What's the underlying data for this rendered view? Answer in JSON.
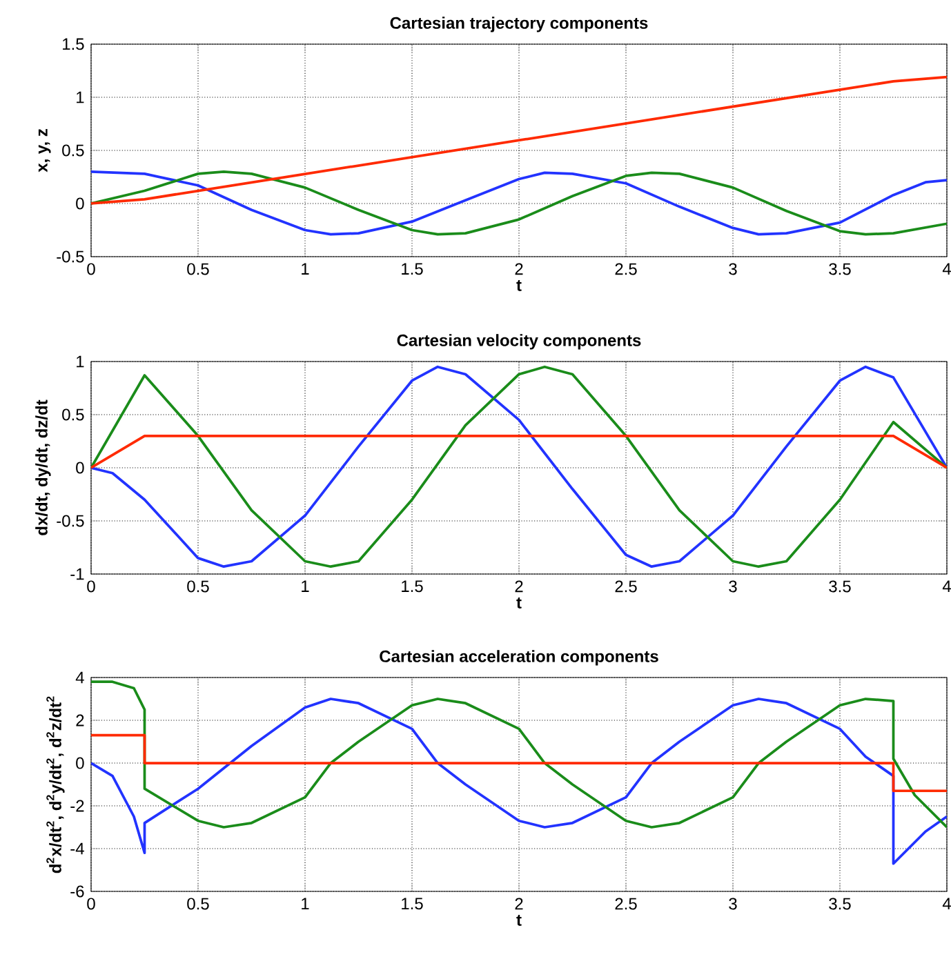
{
  "chart_data": [
    {
      "type": "line",
      "title": "Cartesian trajectory components",
      "xlabel": "t",
      "ylabel": "x, y, z",
      "xlim": [
        0,
        4
      ],
      "ylim": [
        -0.5,
        1.5
      ],
      "xticks": [
        0,
        0.5,
        1,
        1.5,
        2,
        2.5,
        3,
        3.5,
        4
      ],
      "yticks": [
        -0.5,
        0,
        0.5,
        1,
        1.5
      ],
      "grid": true,
      "line_style": "solid",
      "series": [
        {
          "color": "#2233ff",
          "x": [
            0,
            0.25,
            0.5,
            0.75,
            1.0,
            1.12,
            1.25,
            1.5,
            1.75,
            2.0,
            2.12,
            2.25,
            2.5,
            2.75,
            3.0,
            3.12,
            3.25,
            3.5,
            3.75,
            3.9,
            4
          ],
          "values": [
            0.3,
            0.28,
            0.17,
            -0.06,
            -0.25,
            -0.29,
            -0.28,
            -0.17,
            0.03,
            0.23,
            0.29,
            0.28,
            0.19,
            -0.03,
            -0.23,
            -0.29,
            -0.28,
            -0.18,
            0.08,
            0.2,
            0.22
          ]
        },
        {
          "color": "#1a8c1a",
          "x": [
            0,
            0.25,
            0.5,
            0.62,
            0.75,
            1.0,
            1.25,
            1.5,
            1.62,
            1.75,
            2.0,
            2.25,
            2.5,
            2.62,
            2.75,
            3.0,
            3.25,
            3.5,
            3.62,
            3.75,
            4
          ],
          "values": [
            0,
            0.12,
            0.28,
            0.3,
            0.28,
            0.15,
            -0.06,
            -0.25,
            -0.29,
            -0.28,
            -0.15,
            0.07,
            0.26,
            0.29,
            0.28,
            0.15,
            -0.07,
            -0.26,
            -0.29,
            -0.28,
            -0.19
          ]
        },
        {
          "color": "#ff2a00",
          "x": [
            0,
            0.25,
            3.75,
            4
          ],
          "values": [
            0,
            0.04,
            1.15,
            1.19
          ]
        }
      ]
    },
    {
      "type": "line",
      "title": "Cartesian velocity components",
      "xlabel": "t",
      "ylabel": "dx/dt, dy/dt, dz/dt",
      "xlim": [
        0,
        4
      ],
      "ylim": [
        -1,
        1
      ],
      "xticks": [
        0,
        0.5,
        1,
        1.5,
        2,
        2.5,
        3,
        3.5,
        4
      ],
      "yticks": [
        -1,
        -0.5,
        0,
        0.5,
        1
      ],
      "grid": true,
      "line_style": "solid",
      "series": [
        {
          "color": "#2233ff",
          "x": [
            0,
            0.1,
            0.25,
            0.5,
            0.62,
            0.75,
            1.0,
            1.25,
            1.5,
            1.62,
            1.75,
            2.0,
            2.25,
            2.5,
            2.62,
            2.75,
            3.0,
            3.25,
            3.5,
            3.62,
            3.75,
            4
          ],
          "values": [
            0,
            -0.05,
            -0.3,
            -0.85,
            -0.93,
            -0.88,
            -0.45,
            0.2,
            0.82,
            0.95,
            0.88,
            0.45,
            -0.2,
            -0.82,
            -0.93,
            -0.88,
            -0.45,
            0.2,
            0.82,
            0.95,
            0.85,
            0
          ]
        },
        {
          "color": "#1a8c1a",
          "x": [
            0,
            0.25,
            0.5,
            0.75,
            1.0,
            1.12,
            1.25,
            1.5,
            1.75,
            2.0,
            2.12,
            2.25,
            2.5,
            2.75,
            3.0,
            3.12,
            3.25,
            3.5,
            3.75,
            4
          ],
          "values": [
            0,
            0.87,
            0.3,
            -0.4,
            -0.88,
            -0.93,
            -0.88,
            -0.3,
            0.4,
            0.88,
            0.95,
            0.88,
            0.3,
            -0.4,
            -0.88,
            -0.93,
            -0.88,
            -0.3,
            0.43,
            0
          ]
        },
        {
          "color": "#ff2a00",
          "x": [
            0,
            0.25,
            3.75,
            4
          ],
          "values": [
            0,
            0.3,
            0.3,
            0
          ]
        }
      ]
    },
    {
      "type": "line",
      "title": "Cartesian acceleration components",
      "xlabel": "t",
      "ylabel": "d$^{2}$x/dt$^{2}$, d$^{2}$y/dt$^{2}$, d$^{2}$z/dt$^{2}$",
      "xlim": [
        0,
        4
      ],
      "ylim": [
        -6,
        4
      ],
      "xticks": [
        0,
        0.5,
        1,
        1.5,
        2,
        2.5,
        3,
        3.5,
        4
      ],
      "yticks": [
        -6,
        -4,
        -2,
        0,
        2,
        4
      ],
      "grid": true,
      "line_style": "solid",
      "series": [
        {
          "color": "#2233ff",
          "x": [
            0,
            0.1,
            0.2,
            0.25,
            0.25,
            0.5,
            0.75,
            1.0,
            1.12,
            1.25,
            1.5,
            1.62,
            1.75,
            2.0,
            2.12,
            2.25,
            2.5,
            2.62,
            2.75,
            3.0,
            3.12,
            3.25,
            3.5,
            3.62,
            3.75,
            3.75,
            3.9,
            4
          ],
          "values": [
            0,
            -0.6,
            -2.5,
            -4.2,
            -2.8,
            -1.2,
            0.8,
            2.6,
            3.0,
            2.8,
            1.6,
            0,
            -1.0,
            -2.7,
            -3.0,
            -2.8,
            -1.6,
            0,
            1.0,
            2.7,
            3.0,
            2.8,
            1.6,
            0.3,
            -0.6,
            -4.7,
            -3.2,
            -2.5
          ]
        },
        {
          "color": "#1a8c1a",
          "x": [
            0,
            0.1,
            0.2,
            0.25,
            0.25,
            0.5,
            0.62,
            0.75,
            1.0,
            1.12,
            1.25,
            1.5,
            1.62,
            1.75,
            2.0,
            2.12,
            2.25,
            2.5,
            2.62,
            2.75,
            3.0,
            3.12,
            3.25,
            3.5,
            3.62,
            3.75,
            3.75,
            3.85,
            4
          ],
          "values": [
            3.8,
            3.8,
            3.5,
            2.5,
            -1.2,
            -2.7,
            -3.0,
            -2.8,
            -1.6,
            0,
            1.0,
            2.7,
            3.0,
            2.8,
            1.6,
            0,
            -1.0,
            -2.7,
            -3.0,
            -2.8,
            -1.6,
            0,
            1.0,
            2.7,
            3.0,
            2.9,
            0.2,
            -1.5,
            -3.0
          ]
        },
        {
          "color": "#ff2a00",
          "x": [
            0,
            0.25,
            0.25,
            3.75,
            3.75,
            4
          ],
          "values": [
            1.3,
            1.3,
            0,
            0,
            -1.3,
            -1.3
          ]
        }
      ]
    }
  ]
}
